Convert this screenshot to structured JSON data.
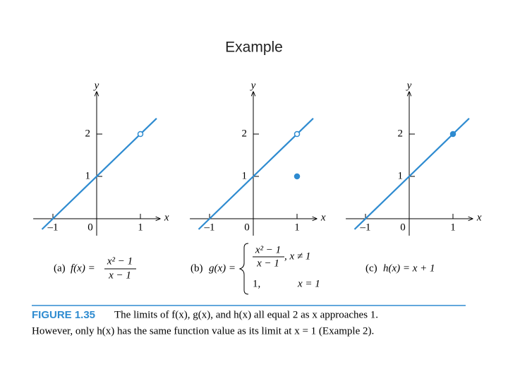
{
  "title": "Example",
  "chart_data": [
    {
      "type": "line",
      "x_label": "x",
      "y_label": "y",
      "color": "#2e8bd0",
      "x": [
        -1.25,
        1.37
      ],
      "values": [
        -0.25,
        2.37
      ],
      "points": [
        {
          "x": 1,
          "y": 2,
          "filled": false
        }
      ],
      "xlim": [
        -1.45,
        1.45
      ],
      "ylim": [
        -0.4,
        3.0
      ],
      "xticks": [
        {
          "value": -1,
          "label": "–1"
        },
        0,
        1
      ],
      "yticks": [
        1,
        2
      ]
    },
    {
      "type": "line",
      "x_label": "x",
      "y_label": "y",
      "color": "#2e8bd0",
      "x": [
        -1.25,
        1.37
      ],
      "values": [
        -0.25,
        2.37
      ],
      "points": [
        {
          "x": 1,
          "y": 2,
          "filled": false
        },
        {
          "x": 1,
          "y": 1,
          "filled": true
        }
      ],
      "xlim": [
        -1.45,
        1.45
      ],
      "ylim": [
        -0.4,
        3.0
      ],
      "xticks": [
        {
          "value": -1,
          "label": "–1"
        },
        0,
        1
      ],
      "yticks": [
        1,
        2
      ]
    },
    {
      "type": "line",
      "x_label": "x",
      "y_label": "y",
      "color": "#2e8bd0",
      "x": [
        -1.25,
        1.37
      ],
      "values": [
        -0.25,
        2.37
      ],
      "points": [
        {
          "x": 1,
          "y": 2,
          "filled": true
        }
      ],
      "xlim": [
        -1.45,
        1.45
      ],
      "ylim": [
        -0.4,
        3.0
      ],
      "xticks": [
        {
          "value": -1,
          "label": "–1"
        },
        0,
        1
      ],
      "yticks": [
        1,
        2
      ]
    }
  ],
  "formulas": {
    "a": {
      "label": "(a)",
      "lhs": "f(x) =",
      "numerator": "x² − 1",
      "denominator": "x − 1"
    },
    "b": {
      "label": "(b)",
      "lhs": "g(x) =",
      "numerator": "x² − 1",
      "denominator": "x − 1",
      "condition1": ",   x ≠ 1",
      "case2": "1,",
      "condition2": "x = 1"
    },
    "c": {
      "label": "(c)",
      "expr": "h(x) = x + 1"
    }
  },
  "caption": {
    "figure": "FIGURE 1.35",
    "line1": "The limits of f(x), g(x), and h(x) all equal 2 as x approaches 1.",
    "line2": "However, only h(x) has the same function value as its limit at x = 1 (Example 2)."
  }
}
